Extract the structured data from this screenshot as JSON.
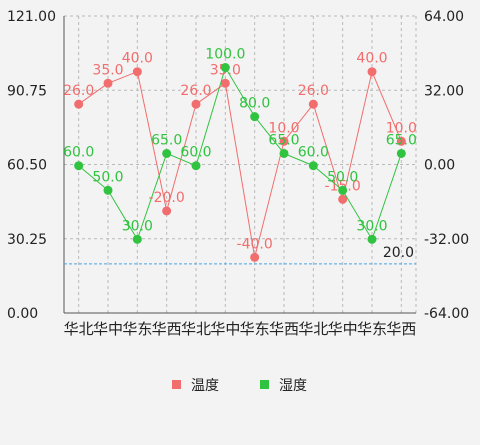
{
  "chart_data": {
    "type": "line",
    "categories": [
      "华北",
      "华中",
      "华东",
      "华西",
      "华北",
      "华中",
      "华东",
      "华西",
      "华北",
      "华中",
      "华东",
      "华西"
    ],
    "series": [
      {
        "name": "温度",
        "axis": "right",
        "color": "#f26d6d",
        "values": [
          26.0,
          35.0,
          40.0,
          -20.0,
          26.0,
          35.0,
          -40.0,
          10.0,
          26.0,
          -15.0,
          40.0,
          10.0
        ],
        "labels": [
          "26.0",
          "35.0",
          "40.0",
          "-20.0",
          "26.0",
          "35.0",
          "-40.0",
          "10.0",
          "26.0",
          "-15.0",
          "40.0",
          "10.0"
        ]
      },
      {
        "name": "湿度",
        "axis": "left",
        "color": "#2fc33f",
        "values": [
          60.0,
          50.0,
          30.0,
          65.0,
          60.0,
          100.0,
          80.0,
          65.0,
          60.0,
          50.0,
          30.0,
          65.0
        ],
        "labels": [
          "60.0",
          "50.0",
          "30.0",
          "65.0",
          "60.0",
          "100.0",
          "80.0",
          "65.0",
          "60.0",
          "50.0",
          "30.0",
          "65.0"
        ]
      }
    ],
    "y_left": {
      "ylim": [
        0,
        121
      ],
      "ticks": [
        "0.00",
        "30.25",
        "60.50",
        "90.75",
        "121.00"
      ]
    },
    "y_right": {
      "ylim": [
        -64,
        64
      ],
      "ticks": [
        "-64.00",
        "-32.00",
        "0.00",
        "32.00",
        "64.00"
      ]
    },
    "limit_line": {
      "value": 20,
      "label": "20.0",
      "color": "#4aa3e6"
    },
    "grid": true,
    "legend": {
      "position": "bottom-center"
    }
  }
}
